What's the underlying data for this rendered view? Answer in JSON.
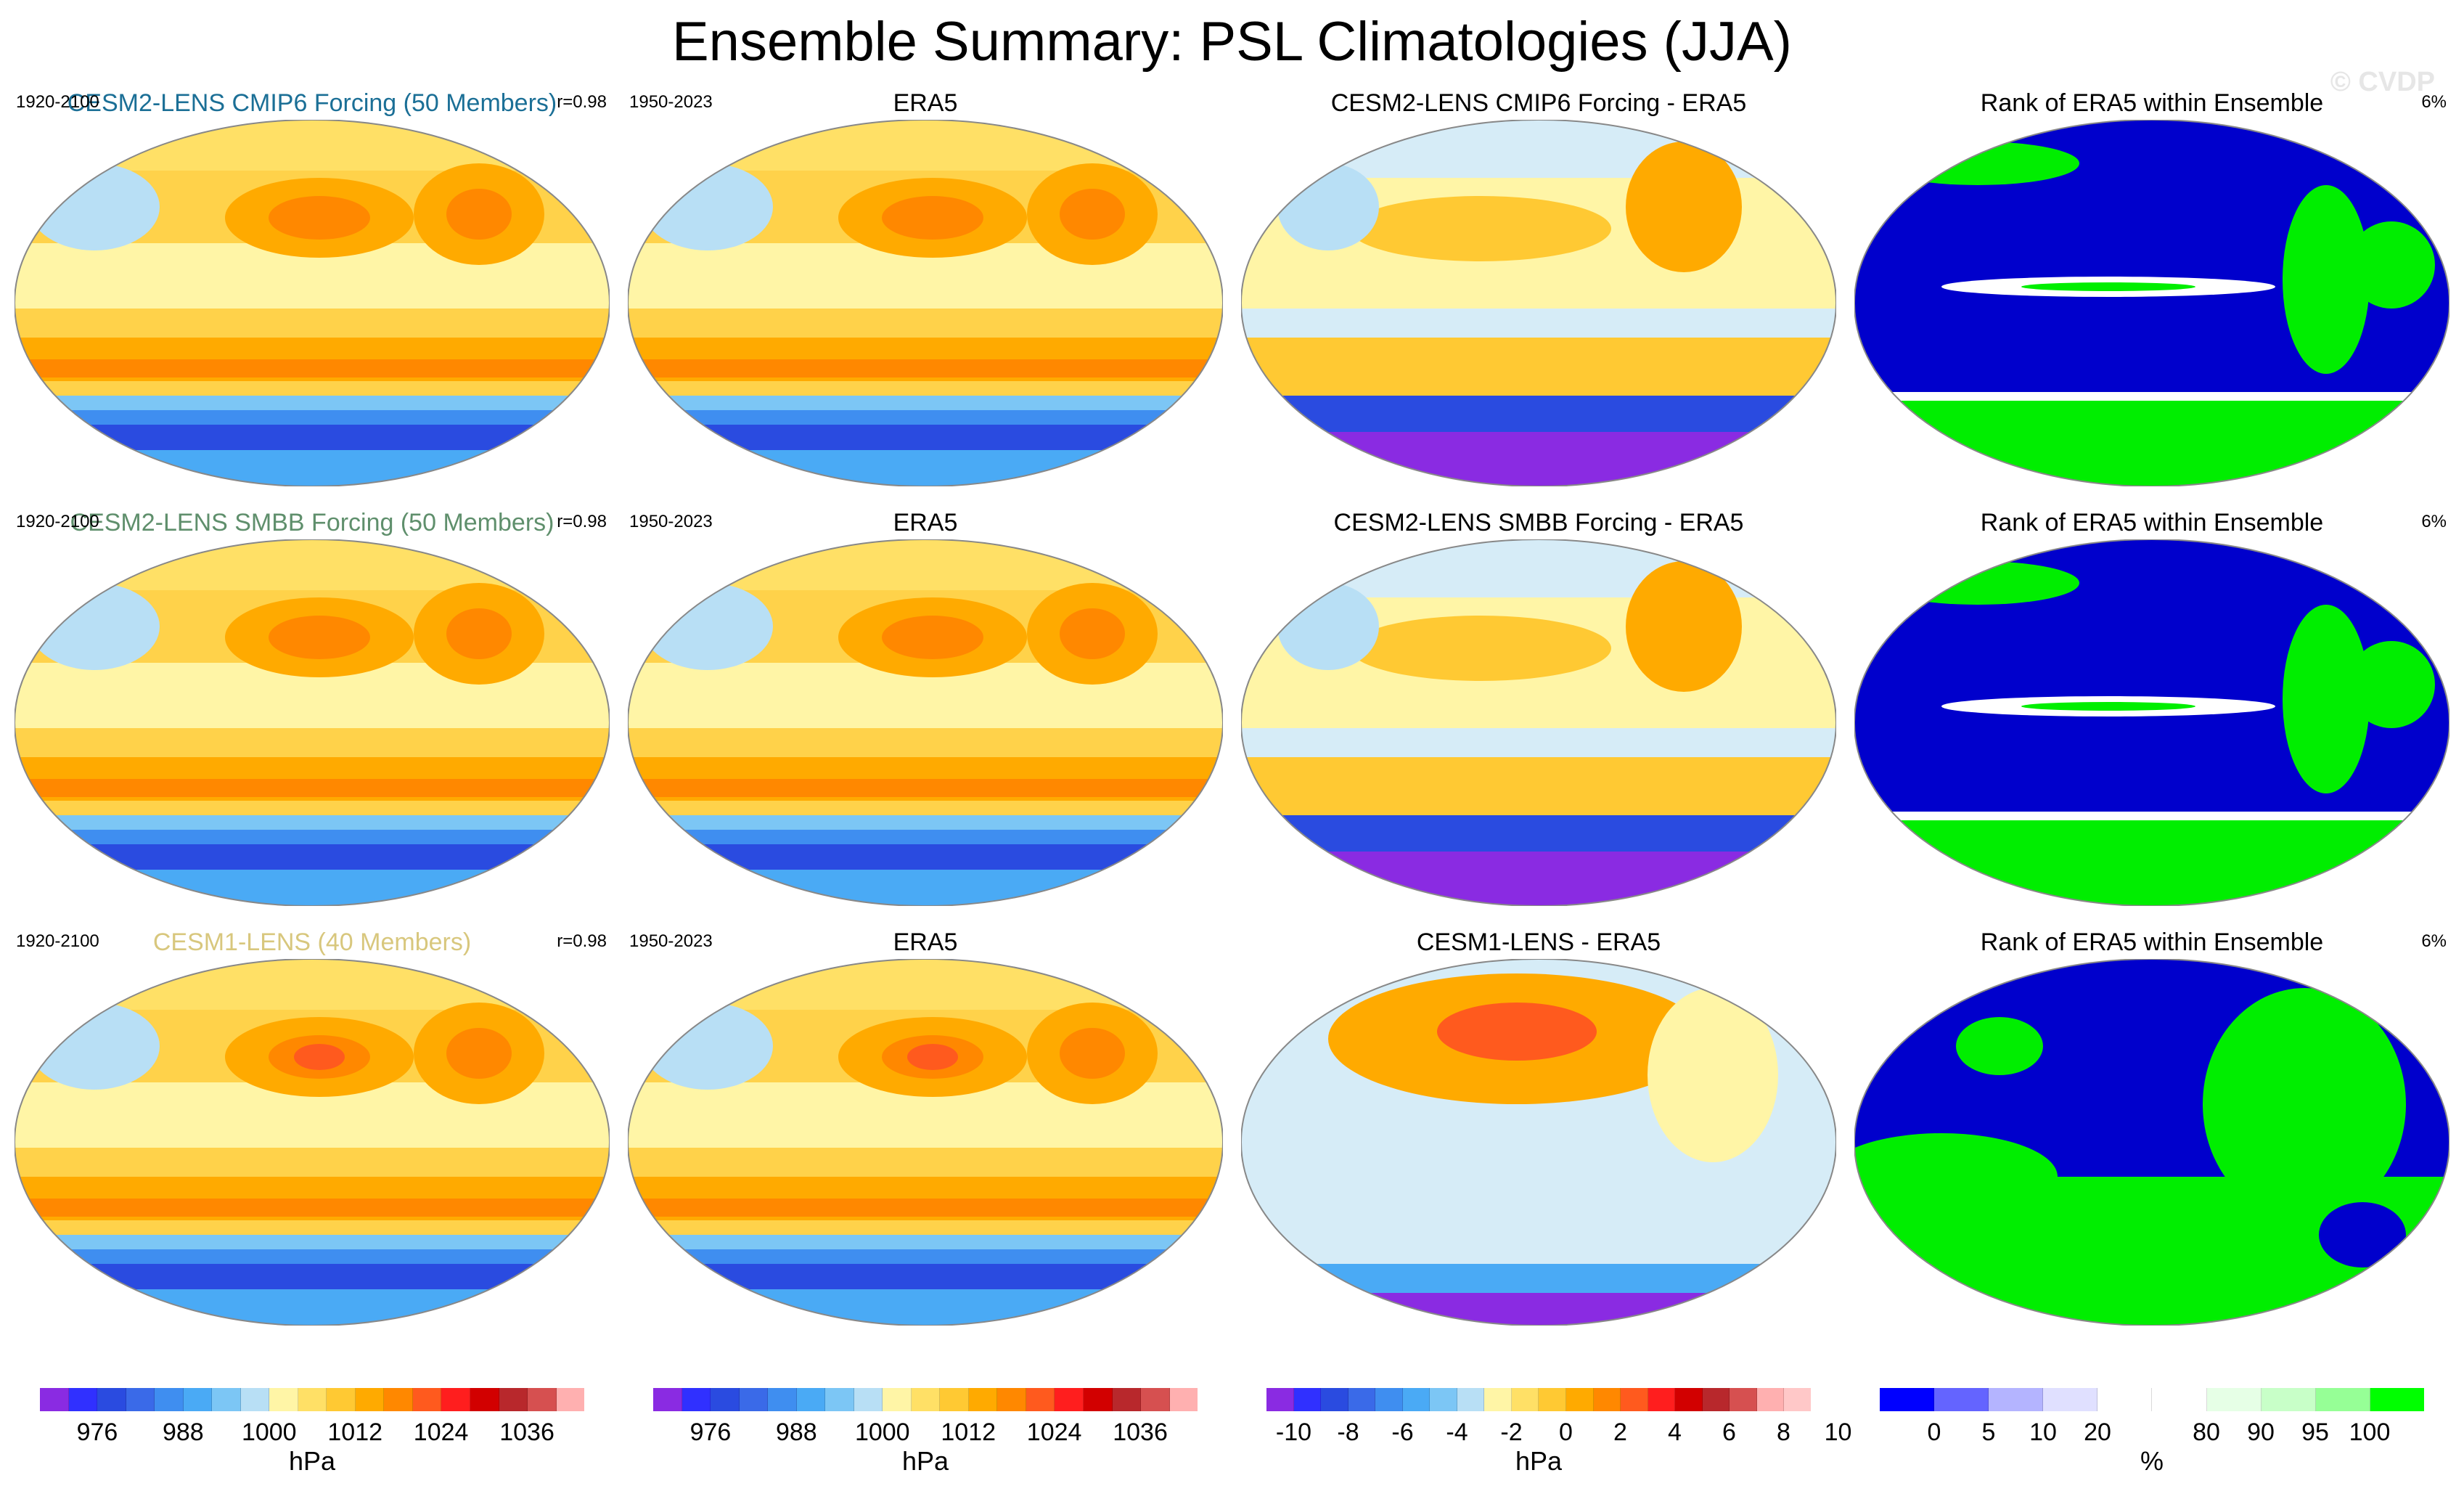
{
  "title": "Ensemble Summary: PSL Climatologies (JJA)",
  "watermark": "© CVDP",
  "rows": [
    {
      "model_title": "CESM2-LENS CMIP6 Forcing (50 Members)",
      "model_title_color": "#1b6f96",
      "model_period": "1920-2100",
      "pattern_corr": "r=0.98",
      "obs_title": "ERA5",
      "obs_period": "1950-2023",
      "diff_title": "CESM2-LENS CMIP6 Forcing - ERA5",
      "rank_title": "Rank of ERA5 within Ensemble",
      "rank_pct": "6%"
    },
    {
      "model_title": "CESM2-LENS SMBB Forcing (50 Members)",
      "model_title_color": "#5f8f6c",
      "model_period": "1920-2100",
      "pattern_corr": "r=0.98",
      "obs_title": "ERA5",
      "obs_period": "1950-2023",
      "diff_title": "CESM2-LENS SMBB Forcing - ERA5",
      "rank_title": "Rank of ERA5 within Ensemble",
      "rank_pct": "6%"
    },
    {
      "model_title": "CESM1-LENS (40 Members)",
      "model_title_color": "#d8c77d",
      "model_period": "1920-2100",
      "pattern_corr": "r=0.98",
      "obs_title": "ERA5",
      "obs_period": "1950-2023",
      "diff_title": "CESM1-LENS - ERA5",
      "rank_title": "Rank of ERA5 within Ensemble",
      "rank_pct": "6%"
    }
  ],
  "colorbars": [
    {
      "unit": "hPa",
      "colors": [
        "#8a2be2",
        "#3030ff",
        "#2a4be0",
        "#3a6ae8",
        "#3f8ef0",
        "#4aaaf5",
        "#7cc6f5",
        "#b8dff5",
        "#fff5a6",
        "#ffe066",
        "#ffc933",
        "#ffaa00",
        "#ff8800",
        "#ff5a1e",
        "#ff1e1e",
        "#d20000",
        "#b8282c",
        "#d65050",
        "#ffb0b0"
      ],
      "labels": [
        "976",
        "988",
        "1000",
        "1012",
        "1024",
        "1036"
      ],
      "label_positions": [
        2,
        5,
        8,
        11,
        14,
        17
      ]
    },
    {
      "unit": "hPa",
      "colors": [
        "#8a2be2",
        "#3030ff",
        "#2a4be0",
        "#3a6ae8",
        "#3f8ef0",
        "#4aaaf5",
        "#7cc6f5",
        "#b8dff5",
        "#fff5a6",
        "#ffe066",
        "#ffc933",
        "#ffaa00",
        "#ff8800",
        "#ff5a1e",
        "#ff1e1e",
        "#d20000",
        "#b8282c",
        "#d65050",
        "#ffb0b0"
      ],
      "labels": [
        "976",
        "988",
        "1000",
        "1012",
        "1024",
        "1036"
      ],
      "label_positions": [
        2,
        5,
        8,
        11,
        14,
        17
      ]
    },
    {
      "unit": "hPa",
      "colors": [
        "#8a2be2",
        "#3030ff",
        "#2a4be0",
        "#3a6ae8",
        "#3f8ef0",
        "#4aaaf5",
        "#7cc6f5",
        "#b8dff5",
        "#fff5a6",
        "#ffe066",
        "#ffc933",
        "#ffaa00",
        "#ff8800",
        "#ff5a1e",
        "#ff1e1e",
        "#d20000",
        "#b8282c",
        "#d65050",
        "#ffb0b0",
        "#ffc8c8"
      ],
      "labels": [
        "-10",
        "-8",
        "-6",
        "-4",
        "-2",
        "0",
        "2",
        "4",
        "6",
        "8",
        "10"
      ],
      "label_positions": [
        1,
        3,
        5,
        7,
        9,
        11,
        13,
        15,
        17,
        19,
        21
      ]
    },
    {
      "unit": "%",
      "colors": [
        "#0000ff",
        "#6464ff",
        "#b4b4ff",
        "#e0e0ff",
        "#ffffff",
        "#ffffff",
        "#e6ffe6",
        "#c8ffc8",
        "#96ff96",
        "#00ff00"
      ],
      "labels": [
        "0",
        "5",
        "10",
        "20",
        "80",
        "90",
        "95",
        "100"
      ],
      "label_positions": [
        1,
        2,
        3,
        4,
        6,
        7,
        8,
        9
      ]
    }
  ]
}
